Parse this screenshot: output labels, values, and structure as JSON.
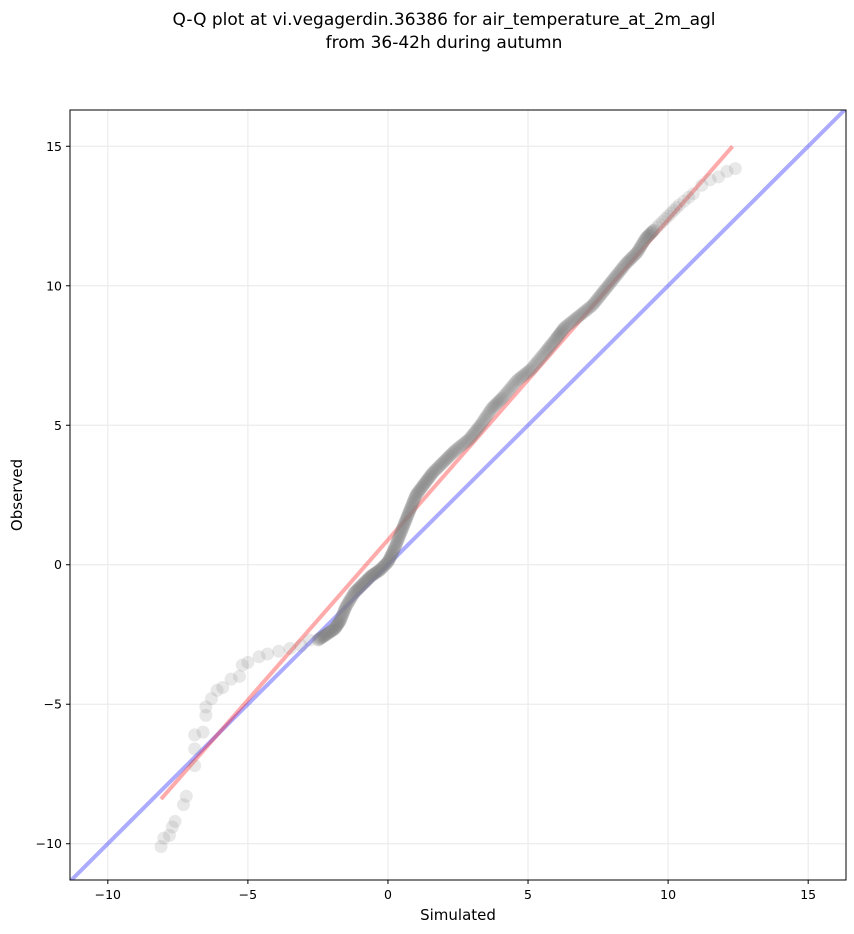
{
  "chart_data": {
    "type": "scatter",
    "title": "Q-Q plot at vi.vegagerdin.36386 for air_temperature_at_2m_agl",
    "subtitle": "from 36-42h during autumn",
    "xlabel": "Simulated",
    "ylabel": "Observed",
    "xlim": [
      -11.35,
      16.35
    ],
    "ylim": [
      -11.3,
      16.3
    ],
    "xticks": [
      -10,
      -5,
      0,
      5,
      10,
      15
    ],
    "yticks": [
      -10,
      -5,
      0,
      5,
      10,
      15
    ],
    "xtick_labels": [
      "−10",
      "−5",
      "0",
      "5",
      "10",
      "15"
    ],
    "ytick_labels": [
      "−10",
      "−5",
      "0",
      "5",
      "10",
      "15"
    ],
    "grid": true,
    "legend": "none",
    "series": [
      {
        "role": "quantiles",
        "color": "#808080",
        "points": [
          [
            -8.1,
            -10.1
          ],
          [
            -8.0,
            -9.8
          ],
          [
            -7.8,
            -9.7
          ],
          [
            -7.7,
            -9.4
          ],
          [
            -7.6,
            -9.2
          ],
          [
            -7.3,
            -8.6
          ],
          [
            -7.2,
            -8.3
          ],
          [
            -6.9,
            -7.2
          ],
          [
            -6.9,
            -6.6
          ],
          [
            -6.9,
            -6.1
          ],
          [
            -6.6,
            -6.0
          ],
          [
            -6.5,
            -5.4
          ],
          [
            -6.5,
            -5.1
          ],
          [
            -6.3,
            -4.8
          ],
          [
            -6.1,
            -4.5
          ],
          [
            -5.9,
            -4.4
          ],
          [
            -5.6,
            -4.1
          ],
          [
            -5.3,
            -4.0
          ],
          [
            -5.2,
            -3.6
          ],
          [
            -5.0,
            -3.5
          ],
          [
            -4.6,
            -3.3
          ],
          [
            -4.3,
            -3.2
          ],
          [
            -3.9,
            -3.1
          ],
          [
            -3.5,
            -3.0
          ],
          [
            -3.1,
            -2.9
          ],
          [
            -2.8,
            -2.7
          ],
          [
            -2.5,
            -2.7
          ],
          [
            -2.2,
            -2.5
          ],
          [
            -1.9,
            -2.3
          ],
          [
            -1.7,
            -2.0
          ],
          [
            -1.5,
            -1.5
          ],
          [
            -1.2,
            -1.0
          ],
          [
            -0.9,
            -0.7
          ],
          [
            -0.6,
            -0.4
          ],
          [
            -0.3,
            -0.2
          ],
          [
            0.0,
            0.1
          ],
          [
            0.2,
            0.5
          ],
          [
            0.4,
            1.0
          ],
          [
            0.6,
            1.5
          ],
          [
            0.8,
            2.0
          ],
          [
            1.0,
            2.5
          ],
          [
            1.3,
            2.9
          ],
          [
            1.6,
            3.3
          ],
          [
            2.0,
            3.7
          ],
          [
            2.4,
            4.1
          ],
          [
            2.9,
            4.5
          ],
          [
            3.3,
            5.0
          ],
          [
            3.7,
            5.6
          ],
          [
            4.1,
            6.0
          ],
          [
            4.6,
            6.6
          ],
          [
            5.1,
            7.0
          ],
          [
            5.6,
            7.6
          ],
          [
            6.0,
            8.1
          ],
          [
            6.3,
            8.5
          ],
          [
            6.8,
            8.9
          ],
          [
            7.3,
            9.3
          ],
          [
            7.7,
            9.8
          ],
          [
            8.1,
            10.3
          ],
          [
            8.5,
            10.8
          ],
          [
            8.9,
            11.2
          ],
          [
            9.2,
            11.7
          ],
          [
            9.5,
            12.0
          ],
          [
            9.8,
            12.3
          ],
          [
            10.1,
            12.6
          ],
          [
            10.4,
            12.9
          ],
          [
            10.9,
            13.3
          ],
          [
            11.2,
            13.6
          ],
          [
            11.5,
            13.8
          ],
          [
            11.8,
            13.9
          ],
          [
            12.1,
            14.1
          ],
          [
            12.4,
            14.2
          ]
        ]
      },
      {
        "role": "reference-1to1",
        "color": "#0000ff",
        "points": [
          [
            -11.35,
            -11.35
          ],
          [
            16.35,
            16.35
          ]
        ]
      },
      {
        "role": "fitted-line",
        "color": "#ff0000",
        "points": [
          [
            -8.1,
            -8.4
          ],
          [
            12.3,
            15.0
          ]
        ]
      }
    ]
  }
}
